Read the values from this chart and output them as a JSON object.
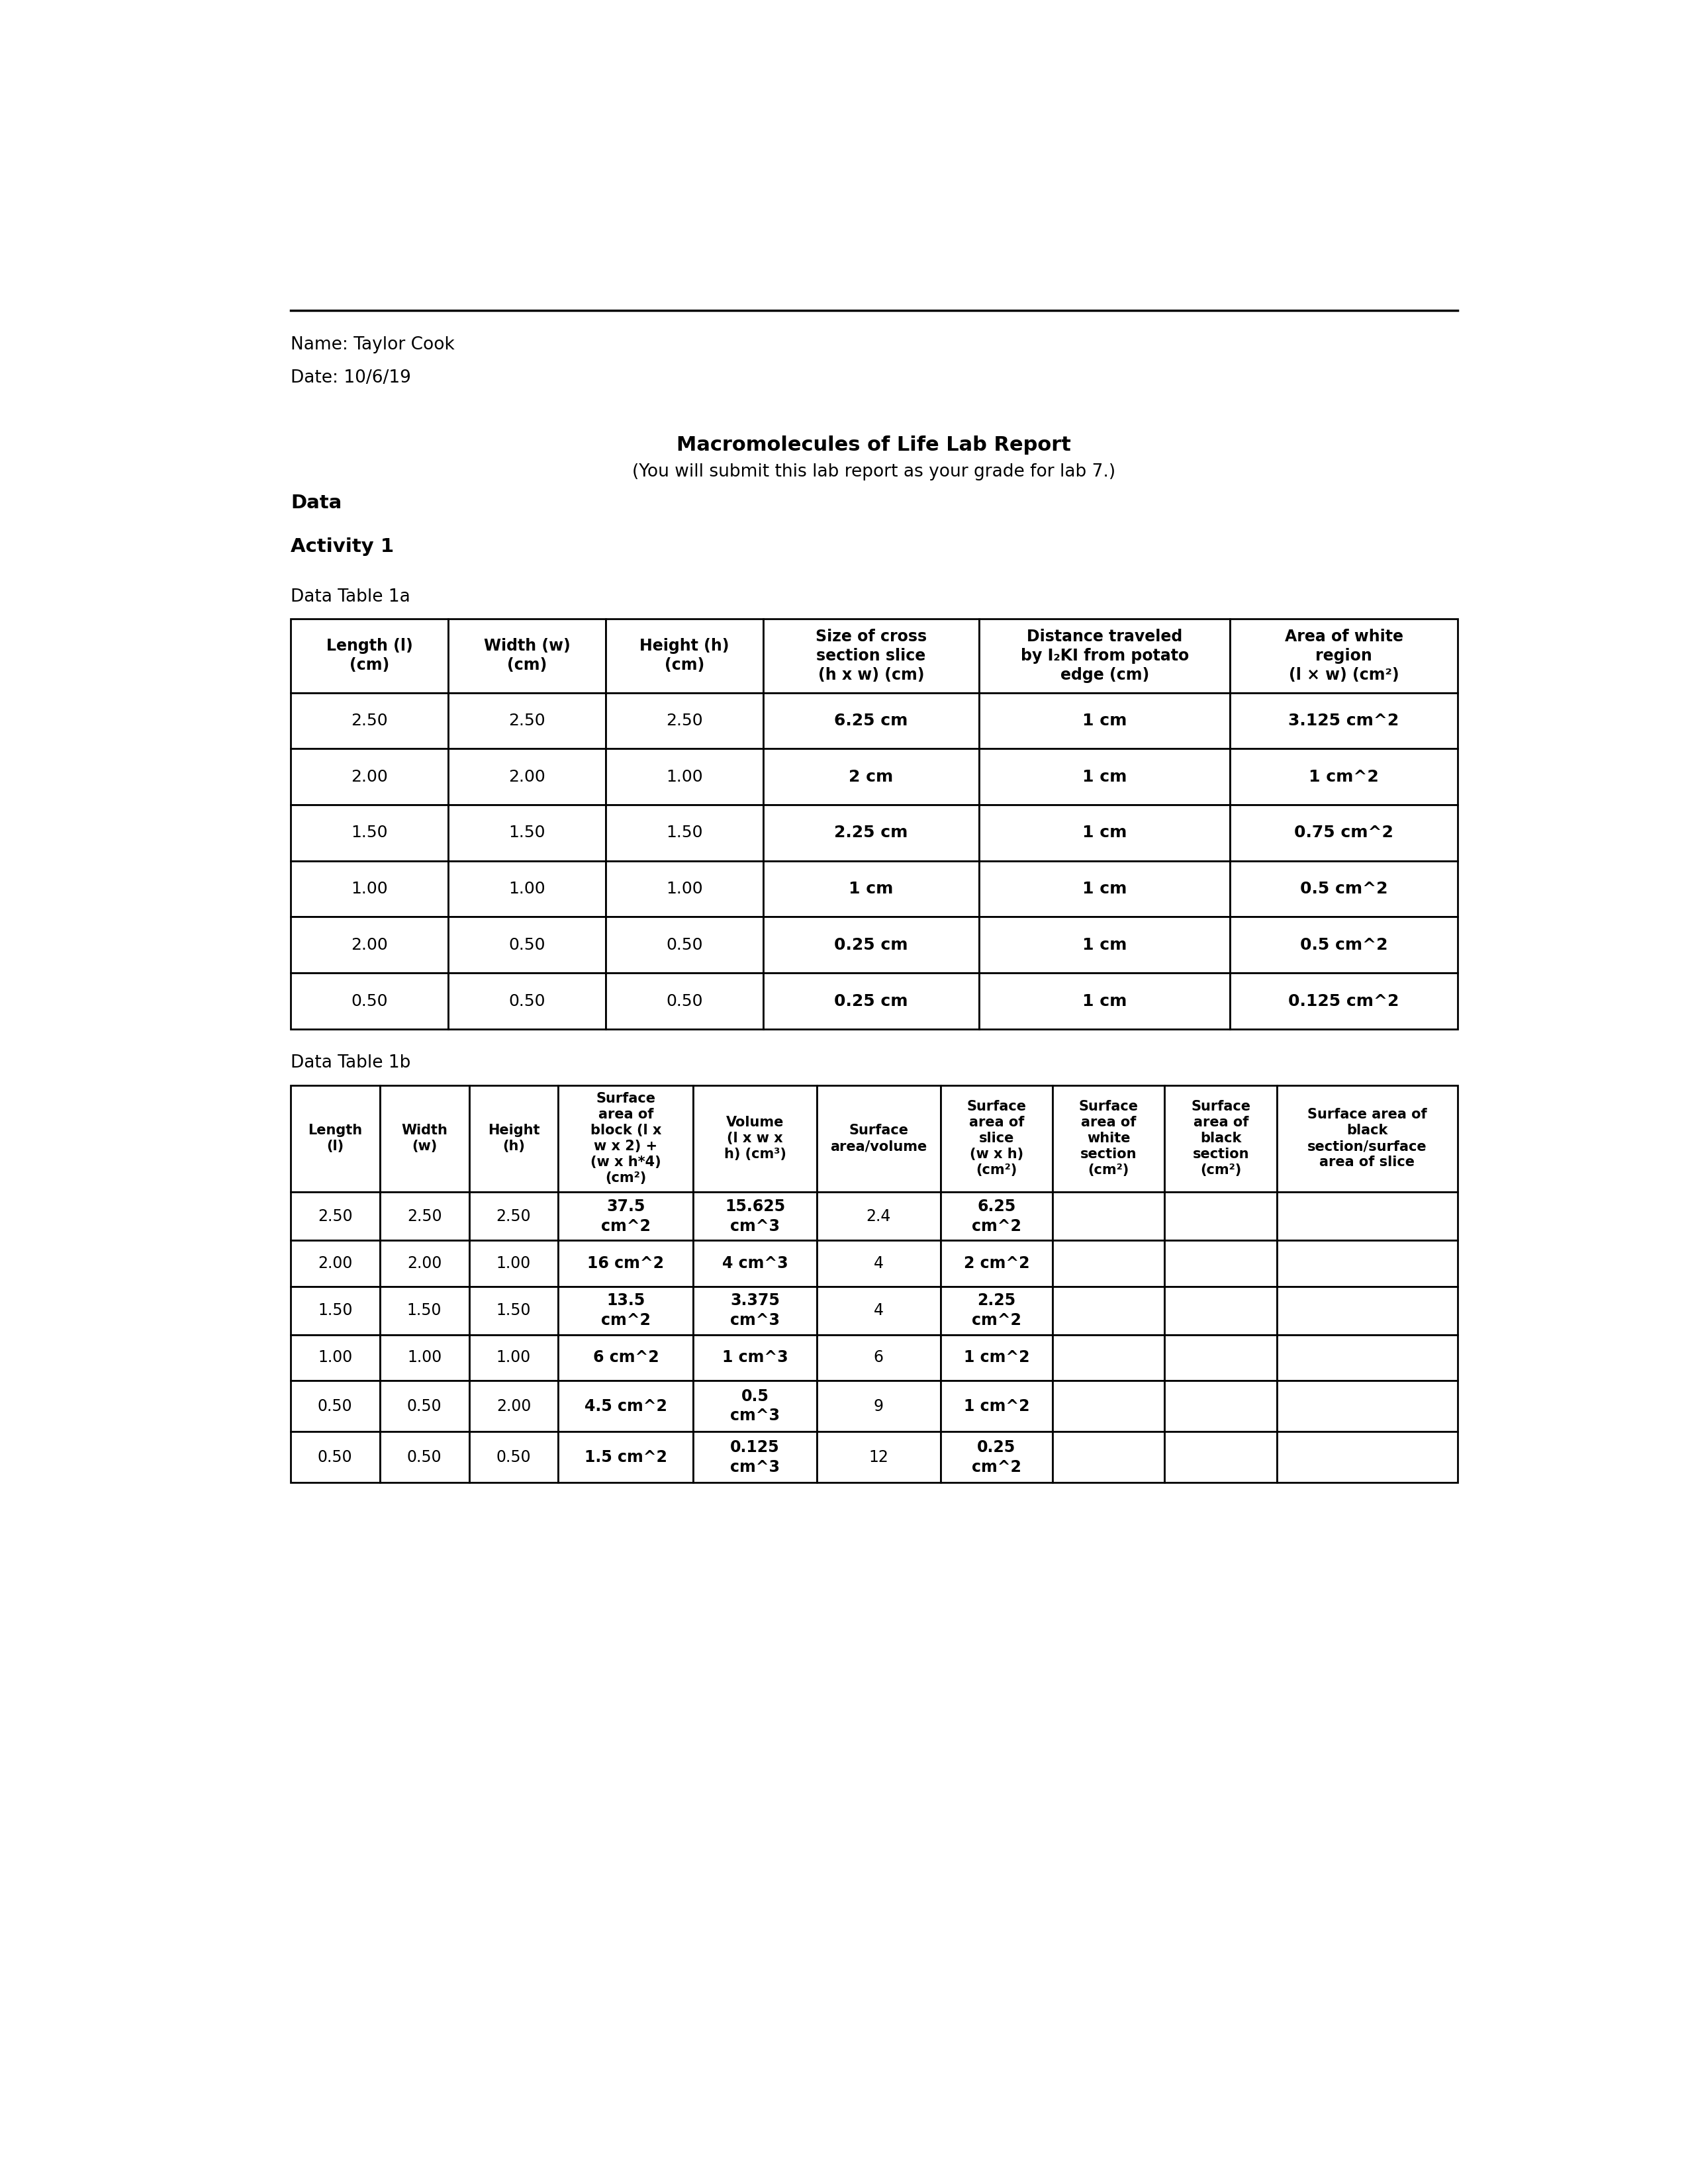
{
  "name": "Name: Taylor Cook",
  "date": "Date: 10/6/19",
  "title": "Macromolecules of Life Lab Report",
  "subtitle": "(You will submit this lab report as your grade for lab 7.)",
  "section_data": "Data",
  "section_activity": "Activity 1",
  "table1a_label": "Data Table 1a",
  "table1b_label": "Data Table 1b",
  "table1a_headers": [
    "Length (l)\n(cm)",
    "Width (w)\n(cm)",
    "Height (h)\n(cm)",
    "Size of cross\nsection slice\n(h x w) (cm)",
    "Distance traveled\nby I₂KI from potato\nedge (cm)",
    "Area of white\nregion\n(l × w) (cm²)"
  ],
  "table1a_data": [
    [
      "2.50",
      "2.50",
      "2.50",
      "6.25 cm",
      "1 cm",
      "3.125 cm^2"
    ],
    [
      "2.00",
      "2.00",
      "1.00",
      "2 cm",
      "1 cm",
      "1 cm^2"
    ],
    [
      "1.50",
      "1.50",
      "1.50",
      "2.25 cm",
      "1 cm",
      "0.75 cm^2"
    ],
    [
      "1.00",
      "1.00",
      "1.00",
      "1 cm",
      "1 cm",
      "0.5 cm^2"
    ],
    [
      "2.00",
      "0.50",
      "0.50",
      "0.25 cm",
      "1 cm",
      "0.5 cm^2"
    ],
    [
      "0.50",
      "0.50",
      "0.50",
      "0.25 cm",
      "1 cm",
      "0.125 cm^2"
    ]
  ],
  "table1a_bold": [
    false,
    false,
    false,
    true,
    true,
    true
  ],
  "table1b_headers": [
    "Length\n(l)",
    "Width\n(w)",
    "Height\n(h)",
    "Surface\narea of\nblock (l x\nw x 2) +\n(w x h*4)\n(cm²)",
    "Volume\n(l x w x\nh) (cm³)",
    "Surface\narea/volume",
    "Surface\narea of\nslice\n(w x h)\n(cm²)",
    "Surface\narea of\nwhite\nsection\n(cm²)",
    "Surface\narea of\nblack\nsection\n(cm²)",
    "Surface area of\nblack\nsection/surface\narea of slice"
  ],
  "table1b_data": [
    [
      "2.50",
      "2.50",
      "2.50",
      "37.5\ncm^2",
      "15.625\ncm^3",
      "2.4",
      "6.25\ncm^2",
      "",
      "",
      ""
    ],
    [
      "2.00",
      "2.00",
      "1.00",
      "16 cm^2",
      "4 cm^3",
      "4",
      "2 cm^2",
      "",
      "",
      ""
    ],
    [
      "1.50",
      "1.50",
      "1.50",
      "13.5\ncm^2",
      "3.375\ncm^3",
      "4",
      "2.25\ncm^2",
      "",
      "",
      ""
    ],
    [
      "1.00",
      "1.00",
      "1.00",
      "6 cm^2",
      "1 cm^3",
      "6",
      "1 cm^2",
      "",
      "",
      ""
    ],
    [
      "0.50",
      "0.50",
      "2.00",
      "4.5 cm^2",
      "0.5\ncm^3",
      "9",
      "1 cm^2",
      "",
      "",
      ""
    ],
    [
      "0.50",
      "0.50",
      "0.50",
      "1.5 cm^2",
      "0.125\ncm^3",
      "12",
      "0.25\ncm^2",
      "",
      "",
      ""
    ]
  ],
  "table1b_bold": [
    false,
    false,
    false,
    true,
    true,
    false,
    true,
    false,
    false,
    false
  ],
  "background_color": "#ffffff"
}
